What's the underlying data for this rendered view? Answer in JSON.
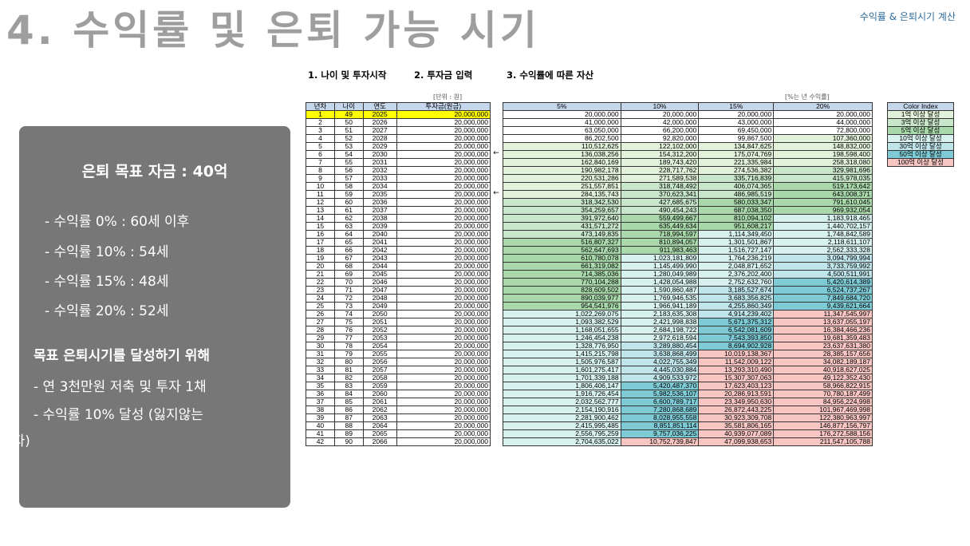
{
  "title": "4. 수익률 및 은퇴 가능 시기",
  "subtitle": "수익률 & 은퇴시기 계산",
  "sections": [
    "1. 나이 및 투자시작",
    "2. 투자금 입력",
    "3. 수익률에 따른 자산"
  ],
  "unit_note": "[단위 : 원]",
  "rate_note": "[%는 년 수익률]",
  "panel": {
    "goal": "은퇴 목표 자금 : 40억",
    "rates": [
      "- 수익률   0% : 60세 이후",
      "- 수익률 10% : 54세",
      "- 수익률 15% : 48세",
      "- 수익률 20% : 52세"
    ],
    "subheading": "목표 은퇴시기를 달성하기 위해",
    "tips": [
      "- 연 3천만원 저축 및 투자 1채",
      "- 수익률 10% 달성 (잃지않는"
    ],
    "tip_tail": "투자)"
  },
  "left_table": {
    "headers": [
      "년차",
      "나이",
      "연도",
      "투자금(원금)"
    ],
    "amount": "20,000,000"
  },
  "right_table": {
    "headers": [
      "5%",
      "10%",
      "15%",
      "20%"
    ],
    "rows": [
      [
        "20,000,000",
        "20,000,000",
        "20,000,000",
        "20,000,000"
      ],
      [
        "41,000,000",
        "42,000,000",
        "43,000,000",
        "44,000,000"
      ],
      [
        "63,050,000",
        "66,200,000",
        "69,450,000",
        "72,800,000"
      ],
      [
        "86,202,500",
        "92,820,000",
        "99,867,500",
        "107,360,000"
      ],
      [
        "110,512,625",
        "122,102,000",
        "134,847,625",
        "148,832,000"
      ],
      [
        "136,038,256",
        "154,312,200",
        "175,074,769",
        "198,598,400"
      ],
      [
        "162,840,169",
        "189,743,420",
        "221,335,984",
        "258,318,080"
      ],
      [
        "190,982,178",
        "228,717,762",
        "274,536,382",
        "329,981,696"
      ],
      [
        "220,531,286",
        "271,589,538",
        "335,716,839",
        "415,978,035"
      ],
      [
        "251,557,851",
        "318,748,492",
        "406,074,365",
        "519,173,642"
      ],
      [
        "284,135,743",
        "370,623,341",
        "486,985,519",
        "643,008,371"
      ],
      [
        "318,342,530",
        "427,685,675",
        "580,033,347",
        "791,610,045"
      ],
      [
        "354,259,657",
        "490,454,243",
        "687,038,350",
        "969,932,054"
      ],
      [
        "391,972,640",
        "559,499,667",
        "810,094,102",
        "1,183,918,465"
      ],
      [
        "431,571,272",
        "635,449,634",
        "951,608,217",
        "1,440,702,157"
      ],
      [
        "473,149,835",
        "718,994,597",
        "1,114,349,450",
        "1,748,842,589"
      ],
      [
        "516,807,327",
        "810,894,057",
        "1,301,501,867",
        "2,118,611,107"
      ],
      [
        "562,647,693",
        "911,983,463",
        "1,516,727,147",
        "2,562,333,328"
      ],
      [
        "610,780,078",
        "1,023,181,809",
        "1,764,236,219",
        "3,094,799,994"
      ],
      [
        "661,319,082",
        "1,145,499,990",
        "2,048,871,652",
        "3,733,759,992"
      ],
      [
        "714,385,036",
        "1,280,049,989",
        "2,376,202,400",
        "4,500,511,991"
      ],
      [
        "770,104,288",
        "1,428,054,988",
        "2,752,632,760",
        "5,420,614,389"
      ],
      [
        "828,609,502",
        "1,590,860,487",
        "3,185,527,674",
        "6,524,737,267"
      ],
      [
        "890,039,977",
        "1,769,946,535",
        "3,683,356,825",
        "7,849,684,720"
      ],
      [
        "954,541,976",
        "1,966,941,189",
        "4,255,860,349",
        "9,439,621,664"
      ],
      [
        "1,022,269,075",
        "2,183,635,308",
        "4,914,239,402",
        "11,347,545,997"
      ],
      [
        "1,093,382,529",
        "2,421,998,838",
        "5,671,375,312",
        "13,637,055,197"
      ],
      [
        "1,168,051,655",
        "2,684,198,722",
        "6,542,081,609",
        "16,384,466,236"
      ],
      [
        "1,246,454,238",
        "2,972,618,594",
        "7,543,393,850",
        "19,681,359,483"
      ],
      [
        "1,328,776,950",
        "3,289,880,454",
        "8,694,902,928",
        "23,637,631,380"
      ],
      [
        "1,415,215,798",
        "3,638,868,499",
        "10,019,138,367",
        "28,385,157,656"
      ],
      [
        "1,505,976,587",
        "4,022,755,349",
        "11,542,009,122",
        "34,082,189,187"
      ],
      [
        "1,601,275,417",
        "4,445,030,884",
        "13,293,310,490",
        "40,918,627,025"
      ],
      [
        "1,701,339,188",
        "4,909,533,972",
        "15,307,307,063",
        "49,122,352,430"
      ],
      [
        "1,806,406,147",
        "5,420,487,370",
        "17,623,403,123",
        "58,966,822,915"
      ],
      [
        "1,916,726,454",
        "5,982,536,107",
        "20,286,913,591",
        "70,780,187,499"
      ],
      [
        "2,032,562,777",
        "6,600,789,717",
        "23,349,950,630",
        "84,956,224,998"
      ],
      [
        "2,154,190,916",
        "7,280,868,689",
        "26,872,443,225",
        "101,967,469,998"
      ],
      [
        "2,281,900,462",
        "8,028,955,558",
        "30,923,309,708",
        "122,380,963,997"
      ],
      [
        "2,415,995,485",
        "8,851,851,114",
        "35,581,806,165",
        "146,877,156,797"
      ],
      [
        "2,556,795,259",
        "9,757,036,225",
        "40,939,077,089",
        "176,272,588,156"
      ],
      [
        "2,704,635,022",
        "10,752,739,847",
        "47,099,938,653",
        "211,547,105,788"
      ]
    ]
  },
  "color_index": {
    "header": "Color Index",
    "items": [
      {
        "label": "1억 이상 달성",
        "color": "#e2f1d9"
      },
      {
        "label": "3억 이상 달성",
        "color": "#c8e6c9"
      },
      {
        "label": "5억 이상 달성",
        "color": "#a9d8ab"
      },
      {
        "label": "10억 이상 달성",
        "color": "#d7f1ef"
      },
      {
        "label": "30억 이상 달성",
        "color": "#bfe5ea"
      },
      {
        "label": "50억 이상 달성",
        "color": "#7ecbd6"
      },
      {
        "label": "100억 이상 달성",
        "color": "#f7c5c2"
      }
    ]
  },
  "arrows": [
    {
      "row": 6,
      "glyph": "←"
    },
    {
      "row": 11,
      "glyph": "←"
    }
  ],
  "start": {
    "age": 49,
    "year": 2025
  }
}
